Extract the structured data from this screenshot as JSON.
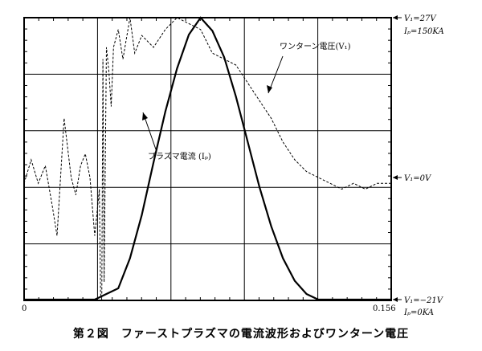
{
  "caption": "第２図　ファーストプラズマの電流波形およびワンターン電圧",
  "chart_data": {
    "type": "line",
    "title": "第２図　ファーストプラズマの電流波形およびワンターン電圧",
    "xlabel": "",
    "ylabel": "",
    "xlim": [
      0,
      0.156
    ],
    "x_tick_labels": [
      "0",
      "0.156"
    ],
    "grid": true,
    "legend": "none",
    "right_axis_labels": {
      "vmax": "V₁=27V",
      "ipmax": "Iₚ=150KA",
      "vzero": "V₁=0V",
      "vmin": "V₁=−21V",
      "ipzero": "Iₚ=0KA"
    },
    "annotations": {
      "loop_voltage": "ワンターン電圧(V₁)",
      "plasma_current": "プラズマ電流 (Iₚ)"
    },
    "series": [
      {
        "key": "plasma_current",
        "unit": "KA",
        "style": "solid",
        "x": [
          0,
          0.01,
          0.02,
          0.03,
          0.04,
          0.045,
          0.05,
          0.055,
          0.06,
          0.065,
          0.07,
          0.075,
          0.08,
          0.085,
          0.09,
          0.095,
          0.1,
          0.105,
          0.11,
          0.115,
          0.12,
          0.125,
          0.13,
          0.135,
          0.156
        ],
        "values": [
          0,
          0,
          0,
          0,
          6,
          22,
          45,
          73,
          100,
          123,
          141,
          150,
          143,
          129,
          108,
          84,
          60,
          39,
          22,
          10,
          3,
          0,
          0,
          0,
          0
        ]
      },
      {
        "key": "loop_voltage",
        "unit": "V",
        "style": "dashed",
        "x": [
          0,
          0.003,
          0.006,
          0.009,
          0.012,
          0.014,
          0.017,
          0.02,
          0.022,
          0.024,
          0.026,
          0.028,
          0.03,
          0.032,
          0.0325,
          0.033,
          0.0335,
          0.034,
          0.035,
          0.036,
          0.037,
          0.038,
          0.04,
          0.042,
          0.045,
          0.047,
          0.05,
          0.055,
          0.06,
          0.065,
          0.07,
          0.075,
          0.08,
          0.085,
          0.09,
          0.095,
          0.1,
          0.105,
          0.11,
          0.115,
          0.12,
          0.125,
          0.13,
          0.135,
          0.14,
          0.145,
          0.15,
          0.156
        ],
        "values": [
          -1,
          3,
          -1,
          2,
          -5,
          -10,
          10,
          0,
          -3,
          2,
          4,
          0,
          -10,
          -2,
          -20,
          -21,
          20,
          -18,
          22,
          18,
          12,
          22,
          25,
          20,
          27,
          21,
          24,
          22,
          25,
          27,
          26,
          25,
          21,
          20,
          19,
          16,
          13,
          10,
          6,
          3,
          1,
          0,
          -1,
          -2,
          -1,
          -2,
          -1,
          -1
        ]
      }
    ]
  }
}
